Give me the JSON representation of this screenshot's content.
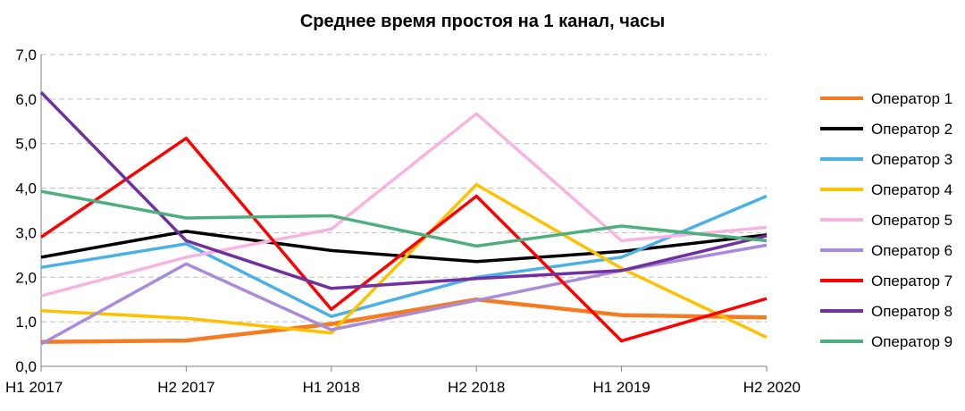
{
  "chart_data": {
    "type": "line",
    "title": "Среднее время простоя на 1 канал, часы",
    "xlabel": "",
    "ylabel": "",
    "categories": [
      "H1 2017",
      "H2 2017",
      "H1 2018",
      "H2 2018",
      "H1 2019",
      "H2 2020"
    ],
    "ylim": [
      0,
      7
    ],
    "yticks": [
      "0,0",
      "1,0",
      "2,0",
      "3,0",
      "4,0",
      "5,0",
      "6,0",
      "7,0"
    ],
    "grid": "horizontal dashed",
    "legend_position": "right",
    "series": [
      {
        "name": "Оператор  1",
        "color": "#F47B20",
        "values": [
          0.55,
          0.58,
          0.95,
          1.5,
          1.15,
          1.1
        ]
      },
      {
        "name": "Оператор  2",
        "color": "#000000",
        "values": [
          2.45,
          3.03,
          2.6,
          2.35,
          2.58,
          2.95
        ]
      },
      {
        "name": "Оператор  3",
        "color": "#4AB0E5",
        "values": [
          2.22,
          2.75,
          1.12,
          2.0,
          2.45,
          3.82
        ]
      },
      {
        "name": "Оператор  4",
        "color": "#FFC000",
        "values": [
          1.25,
          1.08,
          0.75,
          4.08,
          2.2,
          0.65
        ]
      },
      {
        "name": "Оператор  5",
        "color": "#F8B4E0",
        "values": [
          1.58,
          2.45,
          3.08,
          5.67,
          2.82,
          3.12
        ]
      },
      {
        "name": "Оператор  6",
        "color": "#A98BDA",
        "values": [
          0.5,
          2.3,
          0.82,
          1.48,
          2.15,
          2.72
        ]
      },
      {
        "name": "Оператор  7",
        "color": "#FF0000",
        "values": [
          2.9,
          5.12,
          1.28,
          3.82,
          0.57,
          1.52
        ]
      },
      {
        "name": "Оператор  8",
        "color": "#7030A0",
        "values": [
          6.15,
          2.82,
          1.75,
          1.97,
          2.15,
          2.93
        ]
      },
      {
        "name": "Оператор  9",
        "color": "#4CAF7D",
        "values": [
          3.93,
          3.33,
          3.38,
          2.7,
          3.15,
          2.82
        ]
      }
    ]
  }
}
